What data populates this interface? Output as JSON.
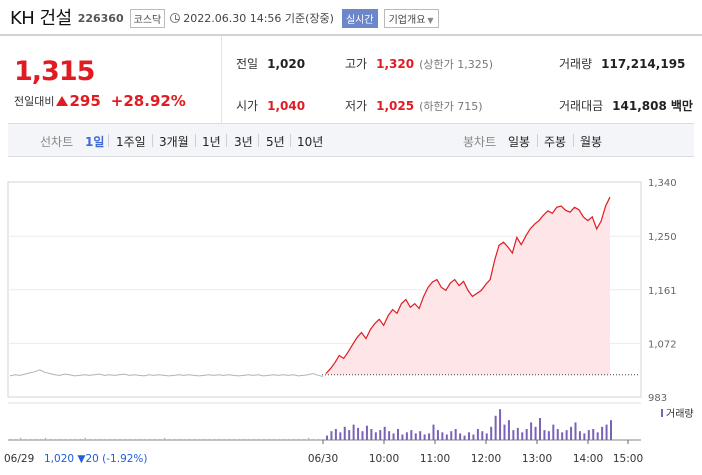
{
  "header": {
    "stock_name": "KH 건설",
    "code": "226360",
    "market": "코스닥",
    "timestamp": "2022.06.30 14:56 기준(장중)",
    "realtime_badge": "실시간",
    "company_info": "기업개요",
    "icons": [
      "clock-icon",
      "chevron-down-icon"
    ]
  },
  "quote": {
    "price": "1,315",
    "change_label": "전일대비",
    "change_amount": "295",
    "change_percent": "+28.92%",
    "direction_icon": "triangle-up-icon",
    "colors": {
      "up": "#e11b22",
      "down": "#1f5fd6"
    }
  },
  "stats": {
    "prev_label": "전일",
    "prev": "1,020",
    "high_label": "고가",
    "high": "1,320",
    "upper_limit": "(상한가 1,325)",
    "volume_label": "거래량",
    "volume": "117,214,195",
    "open_label": "시가",
    "open": "1,040",
    "low_label": "저가",
    "low": "1,025",
    "lower_limit": "(하한가 715)",
    "amount_label": "거래대금",
    "amount": "141,808",
    "amount_unit": "백만"
  },
  "tabs": {
    "line_label": "선차트",
    "line_periods": [
      "1일",
      "1주일",
      "3개월",
      "1년",
      "3년",
      "5년",
      "10년"
    ],
    "selected": "1일",
    "candle_label": "봉차트",
    "candle_periods": [
      "일봉",
      "주봉",
      "월봉"
    ]
  },
  "chart_data": {
    "type": "line",
    "y_ticks": [
      "1,340",
      "1,250",
      "1,161",
      "1,072",
      "983"
    ],
    "ylim": [
      983,
      1340
    ],
    "x_ticks": [
      "06/30",
      "10:00",
      "11:00",
      "12:00",
      "13:00",
      "14:00",
      "15:00"
    ],
    "volume_label": "거래량",
    "prev_day": {
      "date": "06/29",
      "close": "1,020",
      "change": "20",
      "pct": "(-1.92%)"
    },
    "prev_day_series": [
      1018,
      1020,
      1019,
      1021,
      1023,
      1025,
      1028,
      1024,
      1022,
      1020,
      1019,
      1021,
      1020,
      1018,
      1019,
      1020,
      1019,
      1020,
      1021,
      1019,
      1020,
      1019,
      1020,
      1021,
      1019,
      1020,
      1019,
      1018,
      1020,
      1019,
      1020,
      1019,
      1018,
      1019,
      1020,
      1019,
      1020,
      1019,
      1018,
      1019,
      1020,
      1019,
      1020,
      1019,
      1020,
      1019,
      1018,
      1019,
      1020,
      1019,
      1020,
      1018,
      1019,
      1020,
      1019,
      1020,
      1019,
      1020,
      1018,
      1019,
      1020,
      1022,
      1019,
      1017
    ],
    "today_series": [
      1022,
      1030,
      1040,
      1052,
      1047,
      1058,
      1070,
      1082,
      1090,
      1080,
      1095,
      1105,
      1112,
      1102,
      1118,
      1128,
      1122,
      1138,
      1145,
      1132,
      1138,
      1130,
      1150,
      1165,
      1174,
      1178,
      1165,
      1160,
      1172,
      1178,
      1168,
      1175,
      1160,
      1150,
      1155,
      1160,
      1170,
      1178,
      1210,
      1235,
      1240,
      1232,
      1222,
      1248,
      1236,
      1250,
      1262,
      1270,
      1276,
      1285,
      1292,
      1288,
      1298,
      1300,
      1293,
      1290,
      1298,
      1294,
      1282,
      1276,
      1282,
      1262,
      1275,
      1300,
      1315
    ],
    "prev_day_volume": [
      1,
      1,
      2,
      1,
      1,
      1,
      1,
      2,
      1,
      1,
      1,
      1,
      1,
      1,
      1,
      2,
      1,
      1,
      1,
      1,
      1,
      1,
      1,
      1,
      1,
      1,
      1,
      1,
      1,
      1,
      1,
      2,
      1,
      1,
      1,
      1,
      1,
      1,
      1,
      1,
      1,
      1,
      1,
      1,
      1,
      1,
      1,
      1,
      1,
      1,
      1,
      1,
      1,
      1,
      1,
      1,
      1,
      1,
      1,
      1,
      2,
      1,
      1,
      1
    ],
    "today_volume": [
      4,
      8,
      10,
      7,
      12,
      9,
      14,
      11,
      8,
      13,
      10,
      7,
      9,
      12,
      8,
      6,
      10,
      5,
      7,
      9,
      6,
      8,
      5,
      6,
      14,
      9,
      7,
      5,
      8,
      10,
      6,
      4,
      7,
      5,
      10,
      8,
      6,
      12,
      22,
      28,
      14,
      18,
      9,
      11,
      7,
      10,
      16,
      12,
      20,
      9,
      8,
      14,
      10,
      7,
      9,
      12,
      16,
      8,
      6,
      9,
      10,
      7,
      12,
      14,
      18
    ]
  }
}
